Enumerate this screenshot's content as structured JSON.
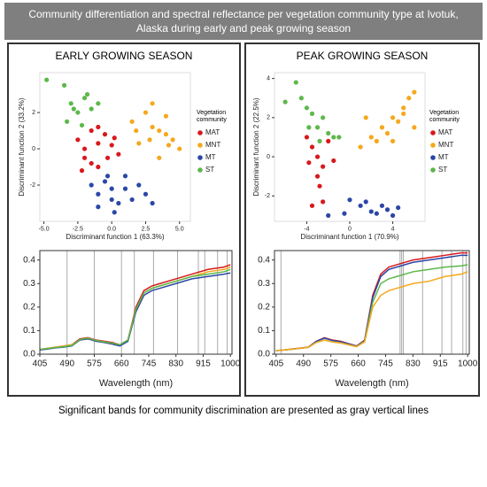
{
  "title": "Community differentiation and spectral reflectance per vegetation community type at Ivotuk, Alaska during early and peak growing season",
  "panels": [
    "EARLY GROWING SEASON",
    "PEAK GROWING SEASON"
  ],
  "caption": "Significant bands for community discrimination are presented as gray vertical lines",
  "chart_data": [
    {
      "type": "scatter",
      "xlabel": "Discriminant function 1 (63.3%)",
      "ylabel": "Discriminant function 2 (33.2%)",
      "legend_title": "Vegetation community",
      "xlim": [
        -5.3,
        5.8
      ],
      "ylim": [
        -4,
        4.2
      ],
      "xticks": [
        {
          "value": -5,
          "label": "-5.0"
        },
        {
          "value": -2.5,
          "label": "-2.5"
        },
        {
          "value": 0,
          "label": "0.0"
        },
        {
          "value": 2.5,
          "label": "2.5"
        },
        {
          "value": 5,
          "label": "5.0"
        }
      ],
      "yticks": [
        -2,
        0,
        2
      ],
      "series": [
        {
          "name": "MAT",
          "color": "#d7191c",
          "x": [
            -2.5,
            -2,
            -1.5,
            -1,
            -0.5,
            0,
            -2,
            -1.5,
            -1,
            -0.3,
            0.5,
            -2.2,
            -1,
            0.2
          ],
          "values": [
            0.5,
            0,
            1,
            0.3,
            0.8,
            0.2,
            -0.5,
            -0.8,
            -1,
            -0.5,
            -0.3,
            -1.2,
            1.2,
            0.6
          ]
        },
        {
          "name": "MNT",
          "color": "#f5a81c",
          "x": [
            1.5,
            2.5,
            3,
            3.5,
            4,
            4.5,
            5,
            2,
            3,
            4,
            3.5,
            2.8,
            4.2,
            1.8
          ],
          "values": [
            1.5,
            2,
            2.5,
            1,
            0.8,
            0.5,
            0,
            0.3,
            1.2,
            1.8,
            -0.5,
            0.5,
            0.2,
            1
          ]
        },
        {
          "name": "MT",
          "color": "#2b47a6",
          "x": [
            -1.5,
            -1,
            -0.5,
            0,
            0.5,
            1,
            1.5,
            2,
            2.5,
            3,
            -1,
            0,
            1,
            0.2,
            -0.3
          ],
          "values": [
            -2,
            -2.5,
            -1.8,
            -2.2,
            -3,
            -1.5,
            -2.8,
            -2,
            -2.5,
            -3,
            -3.2,
            -2.8,
            -2.2,
            -3.5,
            -1.5
          ]
        },
        {
          "name": "ST",
          "color": "#5cb84a",
          "x": [
            -4.8,
            -3.5,
            -3,
            -2.5,
            -2,
            -1.5,
            -1,
            -3.3,
            -2.8,
            -2.2,
            -1.8
          ],
          "values": [
            3.8,
            3.5,
            2.5,
            2,
            2.8,
            2.2,
            2.5,
            1.5,
            2.2,
            1.3,
            3
          ]
        }
      ]
    },
    {
      "type": "line",
      "xlabel": "Wavelength (nm)",
      "xlim": [
        405,
        1005
      ],
      "ylim": [
        0,
        0.44
      ],
      "xticks": [
        405,
        490,
        575,
        660,
        745,
        830,
        915,
        1000
      ],
      "yticks": [
        {
          "value": 0,
          "label": "0.0"
        },
        0.1,
        0.2,
        0.3,
        0.4
      ],
      "vlines": [
        490,
        575,
        660,
        700,
        760,
        835,
        900,
        920,
        960,
        990
      ],
      "x": [
        405,
        430,
        455,
        480,
        505,
        530,
        555,
        580,
        605,
        630,
        655,
        680,
        705,
        730,
        755,
        780,
        830,
        880,
        930,
        980,
        1000
      ],
      "series": [
        {
          "color": "#d7191c",
          "values": [
            0.02,
            0.025,
            0.03,
            0.035,
            0.04,
            0.065,
            0.07,
            0.06,
            0.055,
            0.05,
            0.04,
            0.06,
            0.2,
            0.27,
            0.29,
            0.3,
            0.32,
            0.34,
            0.36,
            0.37,
            0.38
          ]
        },
        {
          "color": "#f5a81c",
          "values": [
            0.02,
            0.025,
            0.03,
            0.035,
            0.04,
            0.06,
            0.065,
            0.058,
            0.052,
            0.045,
            0.038,
            0.058,
            0.19,
            0.26,
            0.28,
            0.29,
            0.31,
            0.33,
            0.35,
            0.36,
            0.37
          ]
        },
        {
          "color": "#2b47a6",
          "values": [
            0.018,
            0.022,
            0.027,
            0.03,
            0.035,
            0.06,
            0.065,
            0.055,
            0.05,
            0.043,
            0.035,
            0.055,
            0.18,
            0.25,
            0.27,
            0.28,
            0.3,
            0.32,
            0.33,
            0.34,
            0.345
          ]
        },
        {
          "color": "#5cb84a",
          "values": [
            0.02,
            0.024,
            0.028,
            0.032,
            0.037,
            0.062,
            0.068,
            0.058,
            0.052,
            0.047,
            0.04,
            0.06,
            0.19,
            0.26,
            0.28,
            0.29,
            0.31,
            0.33,
            0.34,
            0.35,
            0.36
          ]
        }
      ]
    },
    {
      "type": "scatter",
      "xlabel": "Discriminant function 1 (70.9%)",
      "ylabel": "Discriminant function 2 (22.5%)",
      "legend_title": "Vegetation community",
      "xlim": [
        -7,
        7
      ],
      "ylim": [
        -3.3,
        4.3
      ],
      "xticks": [
        -4,
        0,
        4
      ],
      "yticks": [
        -2,
        0,
        2,
        4
      ],
      "series": [
        {
          "name": "MAT",
          "color": "#d7191c",
          "x": [
            -4,
            -3.5,
            -3,
            -2.5,
            -2,
            -3.8,
            -3,
            -2.8,
            -2.5,
            -3.5,
            -1.5
          ],
          "values": [
            1,
            0.5,
            0,
            -0.5,
            0.8,
            -0.3,
            -1,
            -1.5,
            -2.3,
            -2.5,
            -0.2
          ]
        },
        {
          "name": "MNT",
          "color": "#f5a81c",
          "x": [
            1,
            2,
            3,
            4,
            5,
            5.5,
            6,
            2.5,
            3.5,
            4.5,
            5,
            6,
            1.5,
            4
          ],
          "values": [
            0.5,
            1,
            1.5,
            2,
            2.5,
            3,
            3.3,
            0.8,
            1.2,
            1.8,
            2.2,
            1.5,
            2,
            0.8
          ]
        },
        {
          "name": "MT",
          "color": "#2b47a6",
          "x": [
            0,
            1,
            2,
            3,
            4,
            4.5,
            2.5,
            1.5,
            3.5,
            -0.5,
            -2
          ],
          "values": [
            -2.2,
            -2.5,
            -2.8,
            -2.5,
            -3,
            -2.6,
            -2.9,
            -2.3,
            -2.7,
            -2.9,
            -3
          ]
        },
        {
          "name": "ST",
          "color": "#5cb84a",
          "x": [
            -6,
            -5,
            -4.5,
            -4,
            -3.5,
            -3,
            -2.5,
            -2,
            -1.5,
            -1,
            -3.8,
            -2.8
          ],
          "values": [
            2.8,
            3.8,
            3,
            2.5,
            2.2,
            1.5,
            2,
            1.2,
            1,
            1,
            1.5,
            0.8
          ]
        }
      ]
    },
    {
      "type": "line",
      "xlabel": "Wavelength (nm)",
      "xlim": [
        400,
        1005
      ],
      "ylim": [
        0,
        0.44
      ],
      "xticks": [
        405,
        490,
        575,
        660,
        745,
        830,
        915,
        1000
      ],
      "yticks": [
        {
          "value": 0,
          "label": "0.0"
        },
        0.1,
        0.2,
        0.3,
        0.4
      ],
      "vlines": [
        420,
        790,
        795,
        800,
        860,
        920,
        950,
        985,
        995
      ],
      "x": [
        405,
        430,
        455,
        480,
        505,
        530,
        555,
        580,
        605,
        630,
        655,
        680,
        705,
        730,
        755,
        780,
        830,
        880,
        930,
        980,
        1000
      ],
      "series": [
        {
          "color": "#d7191c",
          "values": [
            0.015,
            0.018,
            0.022,
            0.026,
            0.03,
            0.055,
            0.07,
            0.06,
            0.055,
            0.045,
            0.035,
            0.06,
            0.25,
            0.34,
            0.37,
            0.38,
            0.4,
            0.41,
            0.42,
            0.43,
            0.43
          ]
        },
        {
          "color": "#2b47a6",
          "values": [
            0.015,
            0.018,
            0.021,
            0.025,
            0.029,
            0.055,
            0.068,
            0.058,
            0.053,
            0.044,
            0.034,
            0.058,
            0.24,
            0.33,
            0.36,
            0.37,
            0.39,
            0.4,
            0.41,
            0.42,
            0.42
          ]
        },
        {
          "color": "#5cb84a",
          "values": [
            0.015,
            0.018,
            0.021,
            0.025,
            0.029,
            0.05,
            0.06,
            0.052,
            0.048,
            0.04,
            0.032,
            0.055,
            0.22,
            0.3,
            0.32,
            0.33,
            0.35,
            0.36,
            0.37,
            0.375,
            0.38
          ]
        },
        {
          "color": "#f5a81c",
          "values": [
            0.015,
            0.018,
            0.021,
            0.025,
            0.029,
            0.05,
            0.06,
            0.052,
            0.048,
            0.04,
            0.032,
            0.052,
            0.2,
            0.25,
            0.27,
            0.28,
            0.3,
            0.31,
            0.33,
            0.34,
            0.35
          ]
        }
      ]
    }
  ]
}
